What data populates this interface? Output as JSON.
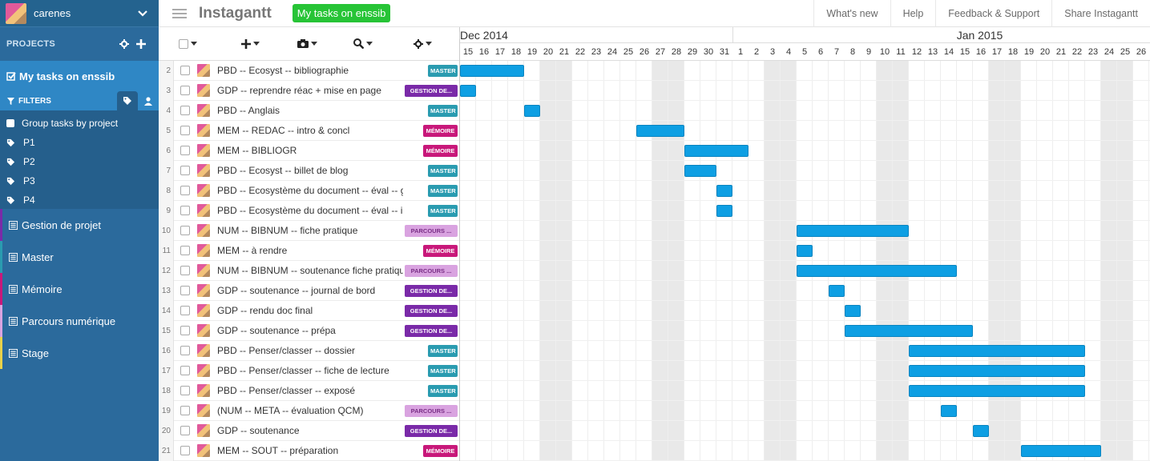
{
  "user": {
    "name": "carenes"
  },
  "sidebar": {
    "projects_label": "PROJECTS",
    "my_tasks_label": "My tasks on enssib",
    "filters_label": "FILTERS",
    "filters": [
      {
        "label": "Group tasks by project",
        "kind": "checkbox"
      },
      {
        "label": "P1",
        "kind": "tag"
      },
      {
        "label": "P2",
        "kind": "tag"
      },
      {
        "label": "P3",
        "kind": "tag"
      },
      {
        "label": "P4",
        "kind": "tag"
      }
    ],
    "projects": [
      {
        "label": "Gestion de projet",
        "color": "#7a2aa8"
      },
      {
        "label": "Master",
        "color": "#2a9bb0"
      },
      {
        "label": "Mémoire",
        "color": "#c8187a"
      },
      {
        "label": "Parcours numérique",
        "color": "#d9a3e0"
      },
      {
        "label": "Stage",
        "color": "#e8d24a"
      }
    ]
  },
  "topbar": {
    "brand": "Instagantt",
    "chip": "My tasks on enssib",
    "links": [
      "What's new",
      "Help",
      "Feedback & Support",
      "Share Instagantt"
    ]
  },
  "colors": {
    "Master": "#2a9bb0",
    "Gestion": "#7a2aa8",
    "Memoire": "#c8187a",
    "Parcours": "#d9a3e0",
    "bar": "#0e9fe3"
  },
  "tasks": [
    {
      "num": "2",
      "name": "PBD -- Ecosyst -- bibliographie",
      "badge": "MASTER",
      "badge_type": "Master",
      "start": 0,
      "dur": 4
    },
    {
      "num": "3",
      "name": "GDP -- reprendre réac + mise en page",
      "badge": "GESTION DE...",
      "badge_type": "Gestion",
      "start": 0,
      "dur": 1
    },
    {
      "num": "4",
      "name": "PBD -- Anglais",
      "badge": "MASTER",
      "badge_type": "Master",
      "start": 4,
      "dur": 1
    },
    {
      "num": "5",
      "name": "MEM -- REDAC -- intro & concl",
      "badge": "MÉMOIRE",
      "badge_type": "Memoire",
      "start": 11,
      "dur": 3
    },
    {
      "num": "6",
      "name": "MEM -- BIBLIOGR",
      "badge": "MÉMOIRE",
      "badge_type": "Memoire",
      "start": 14,
      "dur": 4
    },
    {
      "num": "7",
      "name": "PBD -- Ecosyst -- billet de blog",
      "badge": "MASTER",
      "badge_type": "Master",
      "start": 14,
      "dur": 2
    },
    {
      "num": "8",
      "name": "PBD -- Ecosystème du document -- éval -- groupe",
      "badge": "MASTER",
      "badge_type": "Master",
      "start": 16,
      "dur": 1
    },
    {
      "num": "9",
      "name": "PBD -- Ecosystème du document -- éval -- individuelle",
      "badge": "MASTER",
      "badge_type": "Master",
      "start": 16,
      "dur": 1
    },
    {
      "num": "10",
      "name": "NUM -- BIBNUM -- fiche pratique",
      "badge": "PARCOURS ...",
      "badge_type": "Parcours",
      "start": 21,
      "dur": 7
    },
    {
      "num": "11",
      "name": "MEM -- à rendre",
      "badge": "MÉMOIRE",
      "badge_type": "Memoire",
      "start": 21,
      "dur": 1
    },
    {
      "num": "12",
      "name": "NUM -- BIBNUM -- soutenance fiche pratique",
      "badge": "PARCOURS ...",
      "badge_type": "Parcours",
      "start": 21,
      "dur": 10
    },
    {
      "num": "13",
      "name": "GDP -- soutenance -- journal de bord",
      "badge": "GESTION DE...",
      "badge_type": "Gestion",
      "start": 23,
      "dur": 1
    },
    {
      "num": "14",
      "name": "GDP -- rendu doc final",
      "badge": "GESTION DE...",
      "badge_type": "Gestion",
      "start": 24,
      "dur": 1
    },
    {
      "num": "15",
      "name": "GDP -- soutenance -- prépa",
      "badge": "GESTION DE...",
      "badge_type": "Gestion",
      "start": 24,
      "dur": 8
    },
    {
      "num": "16",
      "name": "PBD -- Penser/classer -- dossier",
      "badge": "MASTER",
      "badge_type": "Master",
      "start": 28,
      "dur": 11
    },
    {
      "num": "17",
      "name": "PBD -- Penser/classer -- fiche de lecture",
      "badge": "MASTER",
      "badge_type": "Master",
      "start": 28,
      "dur": 11
    },
    {
      "num": "18",
      "name": "PBD -- Penser/classer -- exposé",
      "badge": "MASTER",
      "badge_type": "Master",
      "start": 28,
      "dur": 11
    },
    {
      "num": "19",
      "name": "(NUM -- META -- évaluation QCM)",
      "badge": "PARCOURS ...",
      "badge_type": "Parcours",
      "start": 30,
      "dur": 1
    },
    {
      "num": "20",
      "name": "GDP -- soutenance",
      "badge": "GESTION DE...",
      "badge_type": "Gestion",
      "start": 32,
      "dur": 1
    },
    {
      "num": "21",
      "name": "MEM -- SOUT -- préparation",
      "badge": "MÉMOIRE",
      "badge_type": "Memoire",
      "start": 35,
      "dur": 5
    }
  ],
  "gantt": {
    "months": [
      {
        "label": "Dec 2014",
        "start": 0,
        "len": 17
      },
      {
        "label": "Jan 2015",
        "start": 17,
        "len": 26
      }
    ],
    "days": [
      "15",
      "16",
      "17",
      "18",
      "19",
      "20",
      "21",
      "22",
      "23",
      "24",
      "25",
      "26",
      "27",
      "28",
      "29",
      "30",
      "31",
      "1",
      "2",
      "3",
      "4",
      "5",
      "6",
      "7",
      "8",
      "9",
      "10",
      "11",
      "12",
      "13",
      "14",
      "15",
      "16",
      "17",
      "18",
      "19",
      "20",
      "21",
      "22",
      "23",
      "24",
      "25",
      "26"
    ],
    "weekends": [
      5,
      6,
      12,
      13,
      19,
      20,
      26,
      27,
      33,
      34,
      40,
      41
    ]
  }
}
